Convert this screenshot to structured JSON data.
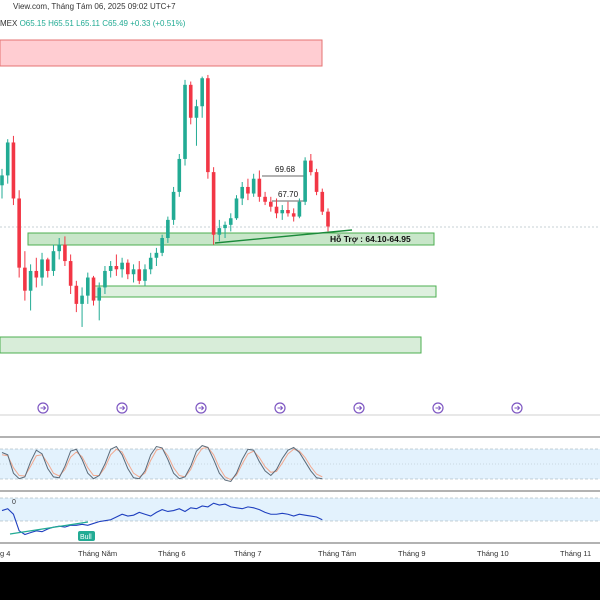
{
  "header": {
    "source_text": "View.com, Tháng Tám 06, 2025 09:02 UTC+7",
    "symbol_fragment": "MEX",
    "ohlc": {
      "o": "O65.15",
      "h": "H65.51",
      "l": "L65.11",
      "c": "C65.49",
      "change": "+0.33 (+0.51%)"
    }
  },
  "colors": {
    "up": "#22ab94",
    "down": "#f23645",
    "zone_fill": "#c8e6c9",
    "zone_border": "#4caf50",
    "resistance": "#ffcdd2",
    "stoch_k": "#5b6b7a",
    "stoch_d": "#f2a88e",
    "line_ind": "#1e3fbf",
    "trendline": "#1b8a3a"
  },
  "chart_data": [
    {
      "type": "candlestick",
      "title": "",
      "annotations": {
        "support_label": "Hỗ Trợ : 64.10-64.95",
        "level_high": "69.68",
        "level_low": "67.70"
      },
      "event_icons": 7,
      "candles": [
        [
          68.0,
          69.0,
          67.2,
          68.6
        ],
        [
          68.6,
          70.8,
          68.1,
          70.6
        ],
        [
          70.6,
          71.0,
          66.8,
          67.2
        ],
        [
          67.2,
          67.7,
          62.4,
          63.0
        ],
        [
          63.0,
          64.0,
          61.0,
          61.6
        ],
        [
          61.6,
          63.2,
          60.4,
          62.8
        ],
        [
          62.8,
          63.6,
          61.8,
          62.4
        ],
        [
          62.4,
          63.9,
          61.9,
          63.5
        ],
        [
          63.5,
          63.6,
          62.4,
          62.8
        ],
        [
          62.8,
          64.4,
          62.5,
          64.0
        ],
        [
          64.0,
          64.8,
          63.5,
          64.4
        ],
        [
          64.4,
          64.9,
          63.1,
          63.4
        ],
        [
          63.4,
          63.8,
          61.4,
          61.9
        ],
        [
          61.9,
          62.2,
          60.3,
          60.8
        ],
        [
          60.8,
          61.8,
          59.4,
          61.3
        ],
        [
          61.3,
          62.7,
          60.8,
          62.4
        ],
        [
          62.4,
          62.5,
          60.7,
          61.0
        ],
        [
          61.0,
          62.1,
          59.8,
          61.8
        ],
        [
          61.8,
          63.1,
          61.4,
          62.8
        ],
        [
          62.8,
          63.4,
          62.4,
          63.1
        ],
        [
          63.1,
          63.8,
          62.5,
          62.9
        ],
        [
          62.9,
          63.6,
          62.4,
          63.3
        ],
        [
          63.3,
          63.5,
          62.3,
          62.6
        ],
        [
          62.6,
          63.2,
          62.1,
          62.9
        ],
        [
          62.9,
          63.4,
          62.0,
          62.2
        ],
        [
          62.2,
          63.2,
          61.9,
          62.9
        ],
        [
          62.9,
          63.9,
          62.6,
          63.6
        ],
        [
          63.6,
          64.2,
          63.1,
          63.9
        ],
        [
          63.9,
          65.0,
          63.7,
          64.8
        ],
        [
          64.8,
          66.1,
          64.5,
          65.9
        ],
        [
          65.9,
          67.9,
          65.6,
          67.6
        ],
        [
          67.6,
          69.9,
          67.3,
          69.6
        ],
        [
          69.6,
          74.4,
          69.2,
          74.1
        ],
        [
          74.1,
          74.3,
          71.7,
          72.1
        ],
        [
          72.1,
          73.2,
          70.4,
          72.8
        ],
        [
          72.8,
          74.6,
          72.1,
          74.5
        ],
        [
          74.5,
          74.7,
          68.4,
          68.8
        ],
        [
          68.8,
          69.1,
          64.4,
          65.0
        ],
        [
          65.0,
          65.9,
          64.6,
          65.4
        ],
        [
          65.4,
          65.8,
          64.8,
          65.6
        ],
        [
          65.6,
          66.3,
          65.2,
          66.0
        ],
        [
          66.0,
          67.4,
          65.9,
          67.2
        ],
        [
          67.2,
          68.2,
          66.8,
          67.9
        ],
        [
          67.9,
          68.4,
          67.1,
          67.5
        ],
        [
          67.5,
          68.7,
          67.3,
          68.4
        ],
        [
          68.4,
          68.9,
          67.0,
          67.3
        ],
        [
          67.3,
          67.6,
          66.8,
          67.0
        ],
        [
          67.0,
          67.3,
          66.4,
          66.7
        ],
        [
          66.7,
          67.2,
          66.0,
          66.3
        ],
        [
          66.3,
          66.8,
          65.9,
          66.5
        ],
        [
          66.5,
          67.0,
          66.1,
          66.3
        ],
        [
          66.3,
          66.6,
          65.8,
          66.1
        ],
        [
          66.1,
          67.2,
          66.0,
          67.0
        ],
        [
          67.0,
          69.7,
          66.8,
          69.5
        ],
        [
          69.5,
          69.9,
          68.6,
          68.8
        ],
        [
          68.8,
          69.0,
          67.4,
          67.6
        ],
        [
          67.6,
          67.8,
          66.2,
          66.4
        ],
        [
          66.4,
          66.6,
          65.2,
          65.5
        ]
      ],
      "x_tick_labels": [
        "g 4",
        "Tháng Năm",
        "Tháng 6",
        "Tháng 7",
        "Tháng Tám",
        "Tháng 9",
        "Tháng 10",
        "Tháng 11"
      ]
    },
    {
      "type": "line",
      "title": "",
      "series": [
        {
          "values": [
            75,
            70,
            30,
            18,
            22,
            55,
            80,
            72,
            40,
            22,
            20,
            45,
            78,
            82,
            60,
            30,
            18,
            25,
            50,
            82,
            88,
            70,
            40,
            20,
            18,
            35,
            70,
            88,
            85,
            60,
            30,
            18,
            22,
            45,
            78,
            90,
            86,
            60,
            30,
            15,
            12,
            30,
            60,
            82,
            80,
            55,
            35,
            25,
            38,
            62,
            80,
            86,
            75,
            55,
            35,
            20,
            18
          ]
        },
        {
          "values": [
            70,
            68,
            42,
            25,
            24,
            45,
            68,
            70,
            52,
            30,
            24,
            38,
            65,
            76,
            66,
            42,
            25,
            25,
            42,
            70,
            82,
            76,
            52,
            30,
            22,
            30,
            58,
            80,
            84,
            68,
            42,
            25,
            22,
            38,
            66,
            84,
            86,
            70,
            42,
            22,
            16,
            26,
            50,
            72,
            78,
            64,
            44,
            32,
            34,
            52,
            72,
            82,
            78,
            64,
            44,
            28,
            22
          ]
        }
      ],
      "ylim": [
        0,
        100
      ]
    },
    {
      "type": "line",
      "title": "",
      "axis_fragment": "0",
      "annotations": {
        "badge": "Bull"
      },
      "series": [
        {
          "values": [
            62,
            64,
            58,
            40,
            36,
            38,
            40,
            39,
            42,
            44,
            45,
            44,
            46,
            46,
            47,
            46,
            48,
            50,
            51,
            52,
            55,
            58,
            56,
            57,
            60,
            58,
            56,
            60,
            63,
            61,
            62,
            64,
            61,
            65,
            64,
            67,
            66,
            70,
            68,
            69,
            66,
            65,
            64,
            66,
            65,
            63,
            60,
            58,
            58,
            59,
            58,
            56,
            58,
            57,
            56,
            55,
            52
          ]
        }
      ],
      "ylim": [
        30,
        80
      ]
    }
  ]
}
